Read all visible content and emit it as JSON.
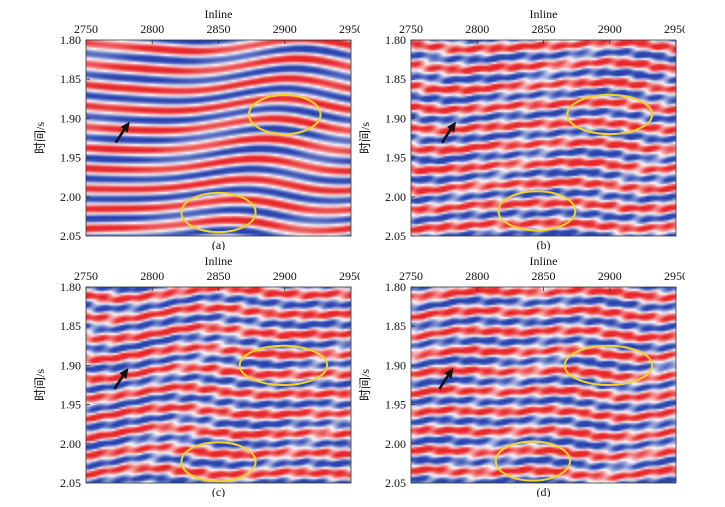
{
  "figure": {
    "x_axis_label": "Inline",
    "y_axis_label": "时间/s",
    "x_ticks": [
      "2750",
      "2800",
      "2850",
      "2900",
      "2950"
    ],
    "y_ticks": [
      "1.80",
      "1.85",
      "1.90",
      "1.95",
      "2.00",
      "2.05"
    ],
    "x_range": [
      2750,
      2950
    ],
    "y_range": [
      1.8,
      2.05
    ],
    "colors": {
      "positive": "#e8282b",
      "negative": "#2a45b0",
      "ellipse": "#f2d32a",
      "arrow": "#111111"
    }
  },
  "panels": [
    {
      "caption": "(a)",
      "ellipses": [
        {
          "inline": 2900,
          "time": 1.895,
          "rx_inline": 27,
          "ry_time": 0.025
        },
        {
          "inline": 2850,
          "time": 2.02,
          "rx_inline": 28,
          "ry_time": 0.025
        }
      ],
      "arrow": {
        "inline": 2777,
        "time": 1.917
      }
    },
    {
      "caption": "(b)",
      "ellipses": [
        {
          "inline": 2900,
          "time": 1.895,
          "rx_inline": 32,
          "ry_time": 0.025
        },
        {
          "inline": 2845,
          "time": 2.018,
          "rx_inline": 29,
          "ry_time": 0.025
        }
      ],
      "arrow": {
        "inline": 2778,
        "time": 1.917
      }
    },
    {
      "caption": "(c)",
      "ellipses": [
        {
          "inline": 2899,
          "time": 1.9,
          "rx_inline": 33,
          "ry_time": 0.025
        },
        {
          "inline": 2850,
          "time": 2.023,
          "rx_inline": 28,
          "ry_time": 0.025
        }
      ],
      "arrow": {
        "inline": 2776,
        "time": 1.916
      }
    },
    {
      "caption": "(d)",
      "ellipses": [
        {
          "inline": 2899,
          "time": 1.9,
          "rx_inline": 33,
          "ry_time": 0.025
        },
        {
          "inline": 2842,
          "time": 2.022,
          "rx_inline": 28,
          "ry_time": 0.025
        }
      ],
      "arrow": {
        "inline": 2776,
        "time": 1.916
      }
    }
  ]
}
